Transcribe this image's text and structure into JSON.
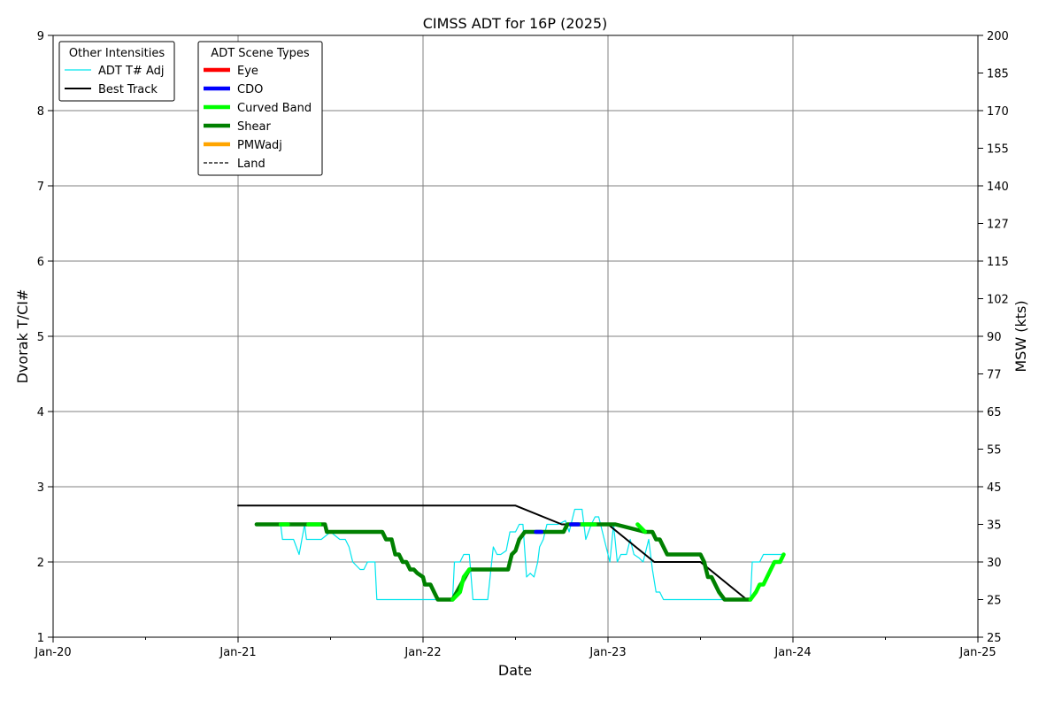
{
  "chart_data": {
    "type": "line",
    "title": "CIMSS ADT for 16P (2025)",
    "xlabel": "Date",
    "ylabel": "Dvorak T/CI#",
    "y2label": "MSW (kts)",
    "x_unit": "days",
    "xlim": [
      "Jan-20",
      "Jan-25"
    ],
    "ylim": [
      1,
      9
    ],
    "x_ticks": [
      "Jan-20",
      "Jan-21",
      "Jan-22",
      "Jan-23",
      "Jan-24",
      "Jan-25"
    ],
    "y_ticks": [
      1,
      2,
      3,
      4,
      5,
      6,
      7,
      8,
      9
    ],
    "y2_ticks": [
      {
        "ci": 1.0,
        "label": "25"
      },
      {
        "ci": 1.5,
        "label": "25"
      },
      {
        "ci": 2.0,
        "label": "30"
      },
      {
        "ci": 2.5,
        "label": "35"
      },
      {
        "ci": 3.0,
        "label": "45"
      },
      {
        "ci": 3.5,
        "label": "55"
      },
      {
        "ci": 4.0,
        "label": "65"
      },
      {
        "ci": 4.5,
        "label": "77"
      },
      {
        "ci": 5.0,
        "label": "90"
      },
      {
        "ci": 5.5,
        "label": "102"
      },
      {
        "ci": 6.0,
        "label": "115"
      },
      {
        "ci": 6.5,
        "label": "127"
      },
      {
        "ci": 7.0,
        "label": "140"
      },
      {
        "ci": 7.5,
        "label": "155"
      },
      {
        "ci": 8.0,
        "label": "170"
      },
      {
        "ci": 8.5,
        "label": "185"
      },
      {
        "ci": 9.0,
        "label": "200"
      }
    ],
    "grid": true,
    "legends": [
      {
        "title": "Other Intensities",
        "placement": "top-left",
        "entries": [
          {
            "label": "ADT T# Adj",
            "color": "#00e5ee",
            "style": "thin"
          },
          {
            "label": "Best Track",
            "color": "#000000",
            "style": "solid"
          }
        ]
      },
      {
        "title": "ADT Scene Types",
        "placement": "top-left",
        "entries": [
          {
            "label": "Eye",
            "color": "#ff0000",
            "style": "thick"
          },
          {
            "label": "CDO",
            "color": "#0000ff",
            "style": "thick"
          },
          {
            "label": "Curved Band",
            "color": "#00ff00",
            "style": "thick"
          },
          {
            "label": "Shear",
            "color": "#008000",
            "style": "thick"
          },
          {
            "label": "PMWadj",
            "color": "#ffa500",
            "style": "thick"
          },
          {
            "label": "Land",
            "color": "#000000",
            "style": "dashed"
          }
        ]
      }
    ],
    "series": [
      {
        "name": "Best Track",
        "color": "#000000",
        "points": [
          [
            1.0,
            2.75
          ],
          [
            2.5,
            2.75
          ],
          [
            2.75,
            2.5
          ],
          [
            3.0,
            2.5
          ],
          [
            3.25,
            2.0
          ],
          [
            3.5,
            2.0
          ],
          [
            3.75,
            1.5
          ]
        ]
      },
      {
        "name": "ADT T# Adj",
        "color": "#00e5ee",
        "points": [
          [
            1.1,
            2.5
          ],
          [
            1.23,
            2.5
          ],
          [
            1.24,
            2.3
          ],
          [
            1.3,
            2.3
          ],
          [
            1.33,
            2.1
          ],
          [
            1.36,
            2.5
          ],
          [
            1.37,
            2.3
          ],
          [
            1.45,
            2.3
          ],
          [
            1.5,
            2.4
          ],
          [
            1.55,
            2.3
          ],
          [
            1.58,
            2.3
          ],
          [
            1.6,
            2.2
          ],
          [
            1.62,
            2.0
          ],
          [
            1.66,
            1.9
          ],
          [
            1.68,
            1.9
          ],
          [
            1.7,
            2.0
          ],
          [
            1.74,
            2.0
          ],
          [
            1.75,
            1.5
          ],
          [
            2.16,
            1.5
          ],
          [
            2.17,
            2.0
          ],
          [
            2.2,
            2.0
          ],
          [
            2.22,
            2.1
          ],
          [
            2.25,
            2.1
          ],
          [
            2.27,
            1.5
          ],
          [
            2.35,
            1.5
          ],
          [
            2.38,
            2.2
          ],
          [
            2.4,
            2.1
          ],
          [
            2.42,
            2.1
          ],
          [
            2.45,
            2.15
          ],
          [
            2.47,
            2.4
          ],
          [
            2.5,
            2.4
          ],
          [
            2.52,
            2.5
          ],
          [
            2.54,
            2.5
          ],
          [
            2.56,
            1.8
          ],
          [
            2.58,
            1.85
          ],
          [
            2.6,
            1.8
          ],
          [
            2.62,
            2.0
          ],
          [
            2.63,
            2.2
          ],
          [
            2.65,
            2.3
          ],
          [
            2.67,
            2.5
          ],
          [
            2.73,
            2.5
          ],
          [
            2.77,
            2.55
          ],
          [
            2.79,
            2.4
          ],
          [
            2.8,
            2.5
          ],
          [
            2.82,
            2.7
          ],
          [
            2.86,
            2.7
          ],
          [
            2.88,
            2.3
          ],
          [
            2.91,
            2.5
          ],
          [
            2.93,
            2.6
          ],
          [
            2.95,
            2.6
          ],
          [
            2.97,
            2.4
          ],
          [
            2.99,
            2.2
          ],
          [
            3.01,
            2.0
          ],
          [
            3.03,
            2.5
          ],
          [
            3.05,
            2.0
          ],
          [
            3.07,
            2.1
          ],
          [
            3.1,
            2.1
          ],
          [
            3.12,
            2.3
          ],
          [
            3.14,
            2.1
          ],
          [
            3.17,
            2.05
          ],
          [
            3.19,
            2.0
          ],
          [
            3.22,
            2.3
          ],
          [
            3.24,
            1.9
          ],
          [
            3.26,
            1.6
          ],
          [
            3.28,
            1.6
          ],
          [
            3.3,
            1.5
          ],
          [
            3.77,
            1.5
          ],
          [
            3.78,
            2.0
          ],
          [
            3.82,
            2.0
          ],
          [
            3.84,
            2.1
          ],
          [
            3.95,
            2.1
          ]
        ]
      },
      {
        "name": "Shear",
        "color": "#008000",
        "points": [
          [
            1.1,
            2.5
          ],
          [
            1.24,
            2.5
          ],
          [
            1.33,
            2.5
          ],
          [
            1.36,
            2.5
          ],
          [
            1.47,
            2.5
          ],
          [
            1.48,
            2.4
          ],
          [
            1.78,
            2.4
          ],
          [
            1.8,
            2.3
          ],
          [
            1.83,
            2.3
          ],
          [
            1.85,
            2.1
          ],
          [
            1.87,
            2.1
          ],
          [
            1.89,
            2.0
          ],
          [
            1.91,
            2.0
          ],
          [
            1.93,
            1.9
          ],
          [
            1.95,
            1.9
          ],
          [
            1.97,
            1.85
          ],
          [
            2.0,
            1.8
          ],
          [
            2.01,
            1.7
          ],
          [
            2.04,
            1.7
          ],
          [
            2.06,
            1.6
          ],
          [
            2.08,
            1.5
          ],
          [
            2.16,
            1.5
          ],
          [
            2.25,
            1.9
          ],
          [
            2.46,
            1.9
          ],
          [
            2.48,
            2.1
          ],
          [
            2.5,
            2.15
          ],
          [
            2.52,
            2.3
          ],
          [
            2.55,
            2.4
          ],
          [
            2.61,
            2.4
          ],
          [
            2.64,
            2.4
          ],
          [
            2.76,
            2.4
          ],
          [
            2.78,
            2.5
          ],
          [
            2.8,
            2.5
          ],
          [
            2.98,
            2.5
          ],
          [
            3.04,
            2.5
          ],
          [
            3.2,
            2.4
          ],
          [
            3.24,
            2.4
          ],
          [
            3.26,
            2.3
          ],
          [
            3.28,
            2.3
          ],
          [
            3.32,
            2.1
          ],
          [
            3.5,
            2.1
          ],
          [
            3.52,
            2.0
          ],
          [
            3.54,
            1.8
          ],
          [
            3.56,
            1.8
          ],
          [
            3.6,
            1.6
          ],
          [
            3.63,
            1.5
          ],
          [
            3.77,
            1.5
          ]
        ]
      },
      {
        "name": "Curved Band",
        "color": "#00ff00",
        "points": [
          [
            1.23,
            2.5
          ],
          [
            1.27,
            2.5
          ],
          [
            1.38,
            2.5
          ],
          [
            1.44,
            2.5
          ],
          [
            2.16,
            1.5
          ],
          [
            2.2,
            1.6
          ],
          [
            2.22,
            1.8
          ],
          [
            2.25,
            1.9
          ],
          [
            2.86,
            2.5
          ],
          [
            2.93,
            2.5
          ],
          [
            3.04,
            2.5
          ],
          [
            3.16,
            2.5
          ],
          [
            3.2,
            2.4
          ],
          [
            3.77,
            1.5
          ],
          [
            3.8,
            1.6
          ],
          [
            3.82,
            1.7
          ],
          [
            3.84,
            1.7
          ],
          [
            3.9,
            2.0
          ],
          [
            3.93,
            2.0
          ],
          [
            3.95,
            2.1
          ]
        ]
      },
      {
        "name": "CDO",
        "color": "#0000ff",
        "points": [
          [
            2.61,
            2.4
          ],
          [
            2.64,
            2.4
          ],
          [
            2.8,
            2.5
          ],
          [
            2.84,
            2.5
          ]
        ]
      }
    ]
  }
}
